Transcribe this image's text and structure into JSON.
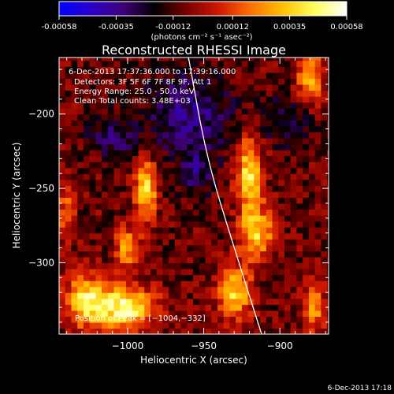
{
  "colorbar": {
    "ticks": [
      "-0.00058",
      "-0.00035",
      "-0.00012",
      "0.00012",
      "0.00035",
      "0.00058"
    ],
    "unit_label": "(photons cm⁻² s⁻¹ asec⁻²)",
    "range": [
      -0.00058,
      0.00058
    ],
    "colors": [
      "#0000ff",
      "#2b00c8",
      "#40007a",
      "#000000",
      "#7a0000",
      "#d01800",
      "#ff7000",
      "#ffc000",
      "#ffff60",
      "#ffffff"
    ]
  },
  "chart_data": {
    "type": "heatmap",
    "title": "Reconstructed RHESSI Image",
    "xlabel": "Heliocentric X (arcsec)",
    "ylabel": "Heliocentric Y (arcsec)",
    "xlim": [
      -1045,
      -868
    ],
    "ylim": [
      -348,
      -162
    ],
    "xticks": [
      -1000,
      -950,
      -900
    ],
    "xtick_labels": [
      "−1000",
      "−950",
      "−900"
    ],
    "yticks": [
      -200,
      -250,
      -300
    ],
    "ytick_labels": [
      "−200",
      "−250",
      "−300"
    ],
    "annotations": [
      "6-Dec-2013 17:37:36.000 to 17:39:16.000",
      "Detectors: 3F 5F 6F 7F 8F 9F, Att 1",
      "Energy Range: 25.0 - 50.0 keV",
      "Clean     Total counts: 3.48E+03"
    ],
    "peak_label": "Position of Peak = [−1004,−332]",
    "peak_position": [
      -1004,
      -332
    ],
    "sources": [
      {
        "x": -1002,
        "y": -330,
        "sx": 14,
        "sy": 10,
        "amp": 1.0
      },
      {
        "x": -1028,
        "y": -325,
        "sx": 9,
        "sy": 12,
        "amp": 0.8
      },
      {
        "x": -988,
        "y": -250,
        "sx": 5,
        "sy": 14,
        "amp": 0.85
      },
      {
        "x": -1000,
        "y": -290,
        "sx": 6,
        "sy": 10,
        "amp": 0.6
      },
      {
        "x": -920,
        "y": -240,
        "sx": 6,
        "sy": 18,
        "amp": 0.85
      },
      {
        "x": -915,
        "y": -280,
        "sx": 8,
        "sy": 12,
        "amp": 0.75
      },
      {
        "x": -930,
        "y": -320,
        "sx": 8,
        "sy": 12,
        "amp": 0.8
      },
      {
        "x": -880,
        "y": -175,
        "sx": 6,
        "sy": 12,
        "amp": 0.7
      },
      {
        "x": -878,
        "y": -330,
        "sx": 5,
        "sy": 12,
        "amp": 0.6
      },
      {
        "x": -1040,
        "y": -265,
        "sx": 4,
        "sy": 14,
        "amp": 0.45
      },
      {
        "x": -960,
        "y": -200,
        "sx": 20,
        "sy": 20,
        "amp": -0.45
      },
      {
        "x": -1010,
        "y": -215,
        "sx": 12,
        "sy": 10,
        "amp": -0.35
      },
      {
        "x": -955,
        "y": -240,
        "sx": 8,
        "sy": 10,
        "amp": -0.35
      },
      {
        "x": -895,
        "y": -205,
        "sx": 12,
        "sy": 12,
        "amp": -0.3
      }
    ],
    "limb": [
      [
        -960,
        -162
      ],
      [
        -948,
        -230
      ],
      [
        -930,
        -290
      ],
      [
        -912,
        -348
      ]
    ]
  },
  "footer_date": "6-Dec-2013 17:18"
}
